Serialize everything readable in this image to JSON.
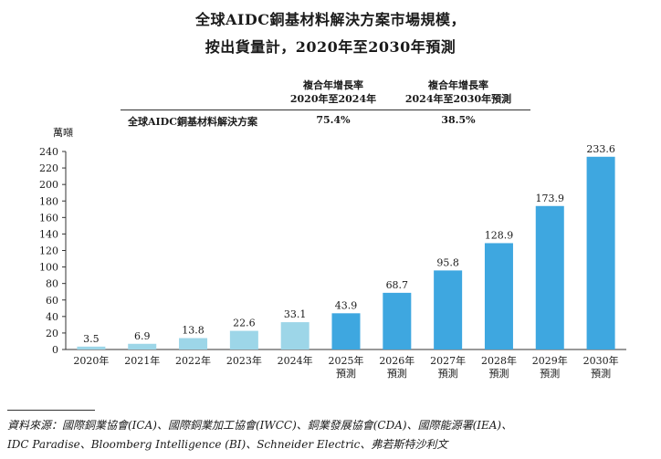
{
  "title_line1": "全球AIDC銅基材料解決方案市場規模，",
  "title_line2": "按出貨量計，2020年至2030年預測",
  "cagr_table": {
    "header1": [
      "複合年增長率",
      "2020年至2024年"
    ],
    "header2": [
      "複合年增長率",
      "2024年至2030年預測"
    ],
    "row_label": "全球AIDC銅基材料解決方案",
    "value1": "75.4%",
    "value2": "38.5%"
  },
  "unit_label": "萬噸",
  "chart_data": {
    "type": "bar",
    "categories": [
      "2020年",
      "2021年",
      "2022年",
      "2023年",
      "2024年",
      "2025年\n預測",
      "2026年\n預測",
      "2027年\n預測",
      "2028年\n預測",
      "2029年\n預測",
      "2030年\n預測"
    ],
    "values": [
      3.5,
      6.9,
      13.8,
      22.6,
      33.1,
      43.9,
      68.7,
      95.8,
      128.9,
      173.9,
      233.6
    ],
    "value_labels": [
      "3.5",
      "6.9",
      "13.8",
      "22.6",
      "33.1",
      "43.9",
      "68.7",
      "95.8",
      "128.9",
      "173.9",
      "233.6"
    ],
    "historical_color": "#9dd6e8",
    "forecast_color": "#3ea7e0",
    "forecast_start_index": 5,
    "ylim": [
      0,
      240
    ],
    "yticks": [
      0,
      20,
      40,
      60,
      80,
      100,
      120,
      140,
      160,
      180,
      200,
      220,
      240
    ],
    "ylabel": "萬噸",
    "xlabel": "",
    "grid": false
  },
  "source_line1": "資料來源：國際銅業協會(ICA)、國際銅業加工協會(IWCC)、銅業發展協會(CDA)、國際能源署(IEA)、",
  "source_line2": "IDC Paradise、Bloomberg Intelligence (BI)、Schneider Electric、弗若斯特沙利文"
}
